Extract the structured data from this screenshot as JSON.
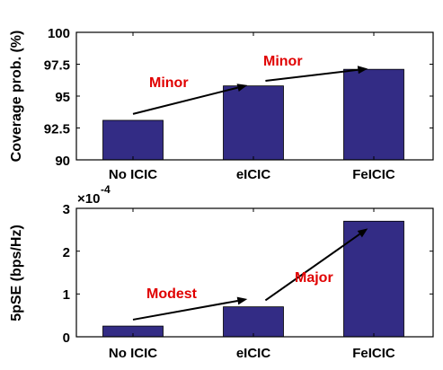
{
  "chart_data": [
    {
      "type": "bar",
      "categories": [
        "No ICIC",
        "eICIC",
        "FeICIC"
      ],
      "values": [
        93.1,
        95.8,
        97.1
      ],
      "ylabel": "Coverage prob. (%)",
      "ylim": [
        90,
        100
      ],
      "yticks": [
        "90",
        "92.5",
        "95",
        "97.5",
        "100"
      ],
      "yticks_values": [
        90,
        92.5,
        95,
        97.5,
        100
      ],
      "bar_color": "#332c85",
      "annotations": [
        {
          "text": "Minor",
          "arrow_from": [
            0,
            93.6
          ],
          "arrow_to": [
            0.95,
            95.85
          ]
        },
        {
          "text": "Minor",
          "arrow_from": [
            1.1,
            96.2
          ],
          "arrow_to": [
            1.95,
            97.15
          ]
        }
      ]
    },
    {
      "type": "bar",
      "categories": [
        "No ICIC",
        "eICIC",
        "FeICIC"
      ],
      "values": [
        0.25,
        0.7,
        2.7
      ],
      "ylabel": "5pSE (bps/Hz)",
      "ylim": [
        0,
        3
      ],
      "yticks": [
        "0",
        "1",
        "2",
        "3"
      ],
      "yticks_values": [
        0,
        1,
        2,
        3
      ],
      "exponent_label": {
        "base": "×10",
        "power": "-4"
      },
      "bar_color": "#332c85",
      "annotations": [
        {
          "text": "Modest",
          "arrow_from": [
            0,
            0.4
          ],
          "arrow_to": [
            0.95,
            0.88
          ]
        },
        {
          "text": "Major",
          "arrow_from": [
            1.1,
            0.85
          ],
          "arrow_to": [
            1.95,
            2.53
          ]
        }
      ]
    }
  ]
}
